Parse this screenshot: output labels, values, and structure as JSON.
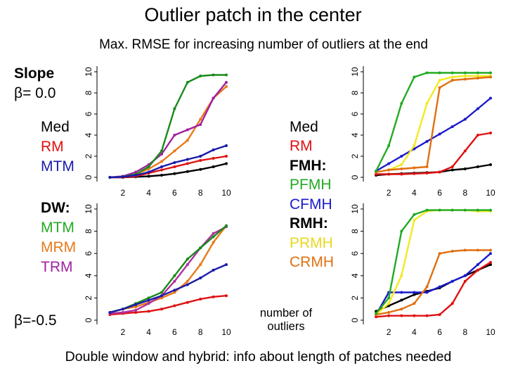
{
  "title": "Outlier patch in the center",
  "subtitle": "Max. RMSE for increasing number of outliers at the end",
  "footer": "Double window and hybrid: info about length of patches needed",
  "left_labels": {
    "slope": "Slope",
    "beta_top": "β= 0.0",
    "med": "Med",
    "rm": "RM",
    "mtm": "MTM",
    "dw": "DW:",
    "dw_mtm": "MTM",
    "dw_mrm": "MRM",
    "dw_trm": "TRM",
    "beta_bottom": "β=-0.5"
  },
  "right_labels": {
    "med": "Med",
    "rm": "RM",
    "fmh": "FMH:",
    "pfmh": "PFMH",
    "cfmh": "CFMH",
    "rmh": "RMH:",
    "prmh": "PRMH",
    "crmh": "CRMH"
  },
  "x_axis_title": "number of outliers",
  "colors": {
    "Med": "#000000",
    "RM": "#e01010",
    "MTM": "#1a1aaa",
    "MRM": "#e87a1a",
    "TRM": "#a020a0",
    "FMH": "#1a1acc",
    "PFMH": "#22aa22",
    "CFMH": "#1a1acc",
    "PRMH": "#f2ea20",
    "CRMH": "#e07010",
    "DW_TRM": "#b030a0",
    "HYB_FMH": "#1a8a1a"
  },
  "chart_data": [
    {
      "type": "line",
      "panel": "top-left",
      "x": [
        1,
        2,
        3,
        4,
        5,
        6,
        7,
        8,
        9,
        10
      ],
      "xticks": [
        2,
        4,
        6,
        8,
        10
      ],
      "yticks": [
        0,
        2,
        4,
        6,
        8,
        10
      ],
      "xlim": [
        0,
        10
      ],
      "ylim": [
        0,
        10
      ],
      "series": [
        {
          "key": "Med",
          "values": [
            0.0,
            0.0,
            0.05,
            0.1,
            0.2,
            0.35,
            0.55,
            0.75,
            1.0,
            1.3
          ]
        },
        {
          "key": "RM",
          "values": [
            0.0,
            0.0,
            0.1,
            0.4,
            0.7,
            1.0,
            1.3,
            1.6,
            1.8,
            2.0
          ]
        },
        {
          "key": "MRM",
          "values": [
            0.0,
            0.05,
            0.3,
            0.8,
            1.5,
            2.5,
            3.5,
            5.5,
            7.5,
            8.6
          ]
        },
        {
          "key": "TRM",
          "values": [
            0.0,
            0.1,
            0.5,
            1.2,
            2.2,
            4.0,
            4.5,
            5.0,
            7.5,
            9.0
          ]
        },
        {
          "key": "HYB_FMH",
          "values": [
            0.0,
            0.05,
            0.3,
            1.0,
            2.5,
            6.5,
            9.0,
            9.6,
            9.7,
            9.7
          ]
        },
        {
          "key": "MTM",
          "values": [
            0.0,
            0.05,
            0.2,
            0.5,
            1.0,
            1.4,
            1.7,
            2.0,
            2.6,
            3.0
          ]
        }
      ]
    },
    {
      "type": "line",
      "panel": "top-right",
      "x": [
        1,
        2,
        3,
        4,
        5,
        6,
        7,
        8,
        9,
        10
      ],
      "xticks": [
        2,
        4,
        6,
        8,
        10
      ],
      "yticks": [
        0,
        2,
        4,
        6,
        8,
        10
      ],
      "xlim": [
        0,
        10
      ],
      "ylim": [
        0,
        10
      ],
      "series": [
        {
          "key": "Med",
          "values": [
            0.2,
            0.3,
            0.35,
            0.4,
            0.45,
            0.5,
            0.7,
            0.8,
            1.0,
            1.2
          ]
        },
        {
          "key": "RM",
          "values": [
            0.3,
            0.3,
            0.3,
            0.35,
            0.4,
            0.5,
            1.0,
            2.5,
            4.0,
            4.2
          ]
        },
        {
          "key": "FMH",
          "values": [
            0.6,
            1.3,
            2.0,
            2.7,
            3.4,
            4.1,
            4.8,
            5.5,
            6.5,
            7.5
          ]
        },
        {
          "key": "PRMH",
          "values": [
            0.5,
            0.7,
            1.2,
            3.0,
            7.0,
            9.2,
            9.5,
            9.6,
            9.6,
            9.6
          ]
        },
        {
          "key": "CRMH",
          "values": [
            0.5,
            0.7,
            0.8,
            0.9,
            1.0,
            8.5,
            9.2,
            9.3,
            9.4,
            9.5
          ]
        },
        {
          "key": "PFMH",
          "values": [
            0.6,
            3.0,
            7.0,
            9.5,
            9.9,
            9.9,
            9.9,
            9.9,
            9.9,
            9.9
          ]
        }
      ]
    },
    {
      "type": "line",
      "panel": "bottom-left",
      "x": [
        1,
        2,
        3,
        4,
        5,
        6,
        7,
        8,
        9,
        10
      ],
      "xticks": [
        2,
        4,
        6,
        8,
        10
      ],
      "yticks": [
        0,
        2,
        4,
        6,
        8,
        10
      ],
      "xlim": [
        0,
        10
      ],
      "ylim": [
        0,
        10
      ],
      "series": [
        {
          "key": "RM",
          "values": [
            0.5,
            0.6,
            0.7,
            0.8,
            1.0,
            1.3,
            1.6,
            1.9,
            2.1,
            2.2
          ]
        },
        {
          "key": "MRM",
          "values": [
            0.7,
            1.0,
            1.2,
            1.6,
            2.0,
            2.5,
            3.5,
            5.0,
            7.0,
            8.5
          ]
        },
        {
          "key": "DW_TRM",
          "values": [
            0.6,
            0.7,
            0.9,
            1.5,
            2.2,
            3.5,
            5.0,
            6.5,
            7.8,
            8.4
          ]
        },
        {
          "key": "HYB_FMH",
          "values": [
            0.7,
            1.0,
            1.5,
            2.0,
            2.5,
            4.0,
            5.5,
            6.5,
            7.5,
            8.5
          ]
        },
        {
          "key": "MTM",
          "values": [
            0.7,
            1.0,
            1.4,
            1.8,
            2.2,
            2.7,
            3.2,
            3.8,
            4.5,
            5.0
          ]
        }
      ]
    },
    {
      "type": "line",
      "panel": "bottom-right",
      "x": [
        1,
        2,
        3,
        4,
        5,
        6,
        7,
        8,
        9,
        10
      ],
      "xticks": [
        2,
        4,
        6,
        8,
        10
      ],
      "yticks": [
        0,
        2,
        4,
        6,
        8,
        10
      ],
      "xlim": [
        0,
        10
      ],
      "ylim": [
        0,
        10
      ],
      "series": [
        {
          "key": "Med",
          "values": [
            0.8,
            1.3,
            1.8,
            2.3,
            2.6,
            2.9,
            3.5,
            4.0,
            4.5,
            5.0
          ]
        },
        {
          "key": "RM",
          "values": [
            0.3,
            0.4,
            0.4,
            0.4,
            0.4,
            0.5,
            1.5,
            3.5,
            4.5,
            5.2
          ]
        },
        {
          "key": "FMH",
          "values": [
            0.5,
            2.5,
            2.5,
            2.5,
            2.5,
            3.0,
            3.5,
            4.0,
            5.0,
            6.0
          ]
        },
        {
          "key": "PRMH",
          "values": [
            0.5,
            1.5,
            4.0,
            9.0,
            9.8,
            9.9,
            9.9,
            9.9,
            9.8,
            9.8
          ]
        },
        {
          "key": "CRMH",
          "values": [
            0.5,
            0.7,
            1.0,
            1.5,
            3.0,
            6.0,
            6.2,
            6.3,
            6.3,
            6.3
          ]
        },
        {
          "key": "PFMH",
          "values": [
            0.6,
            2.0,
            8.0,
            9.5,
            9.9,
            9.9,
            9.9,
            9.9,
            9.9,
            9.9
          ]
        }
      ]
    }
  ]
}
